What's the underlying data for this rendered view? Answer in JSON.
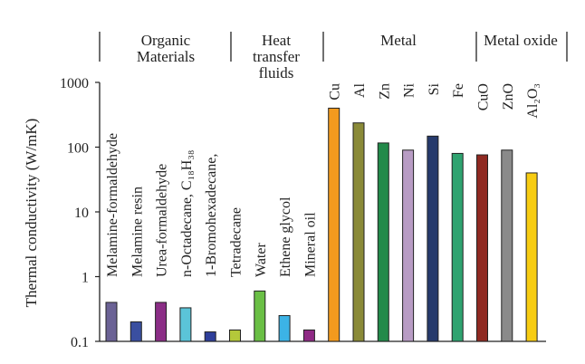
{
  "chart_data": {
    "type": "bar",
    "ylabel": "Thermal conductivity (W/mK)",
    "yscale": "log",
    "ylim": [
      0.1,
      1000
    ],
    "yticks": [
      "0.1",
      "1",
      "10",
      "100",
      "1000"
    ],
    "grid": false,
    "groups": [
      {
        "label_lines": [
          "Organic",
          "Materials"
        ]
      },
      {
        "label_lines": [
          "Heat",
          "transfer",
          "fluids"
        ]
      },
      {
        "label_lines": [
          "Metal"
        ]
      },
      {
        "label_lines": [
          "Metal oxide"
        ]
      }
    ],
    "categories": [
      "Melamine-formaldehyde",
      "Melamine resin",
      "Urea-formaldehyde",
      "n-Octadecane, C₁₈H₃₈",
      "1-Bromohexadecane,",
      "Tetradecane",
      "Water",
      "Ethene glycol",
      "Mineral oil",
      "Cu",
      "Al",
      "Zn",
      "Ni",
      "Si",
      "Fe",
      "CuO",
      "ZnO",
      "Al₂O₃"
    ],
    "values": [
      0.4,
      0.2,
      0.4,
      0.33,
      0.14,
      0.15,
      0.6,
      0.25,
      0.15,
      400,
      237,
      116,
      90,
      148,
      80,
      76,
      90,
      40
    ],
    "colors": [
      "#6b6295",
      "#3a4fa0",
      "#8b2e86",
      "#5bc4d8",
      "#2f3f9a",
      "#b4c83a",
      "#6abf45",
      "#3cb3e6",
      "#8f2a85",
      "#f39a1e",
      "#8a8a38",
      "#238a4a",
      "#b89cc4",
      "#263a6c",
      "#2fa370",
      "#8f2a22",
      "#8a8a8a",
      "#f7cc12"
    ]
  }
}
